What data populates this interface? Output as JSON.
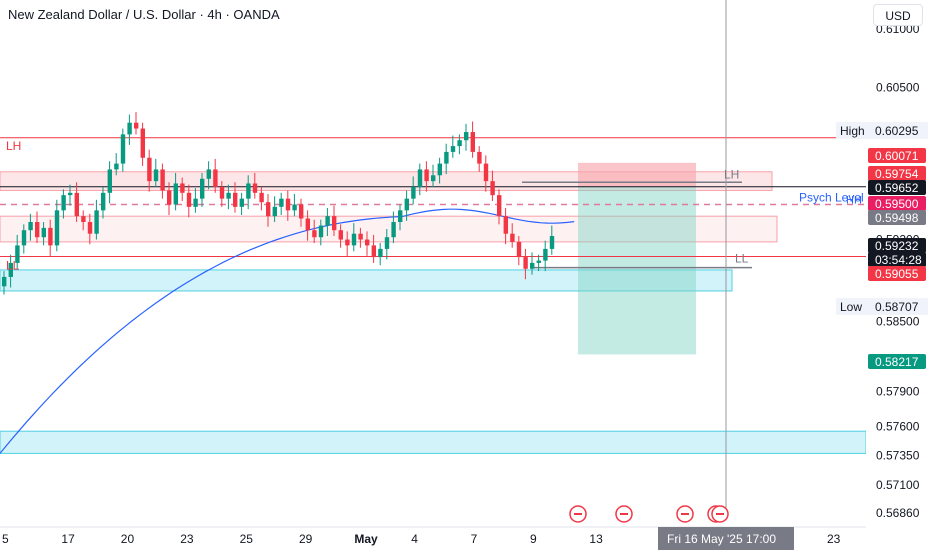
{
  "header": {
    "title": "New Zealand Dollar / U.S. Dollar · 4h · OANDA",
    "currency": "USD"
  },
  "colors": {
    "up": "#089981",
    "down": "#f23645",
    "ma": "#2962ff",
    "zone_blue": "#a5e8f3",
    "zone_red": "#fbd2d5"
  },
  "chart_data": {
    "type": "candlestick",
    "title": "New Zealand Dollar / U.S. Dollar · 4h · OANDA",
    "ylim": [
      0.568,
      0.6125
    ],
    "y_ticks": [
      "0.61000",
      "0.60500",
      "0.59200",
      "0.58900",
      "0.58500",
      "0.57900",
      "0.57600",
      "0.57350",
      "0.57100",
      "0.56860"
    ],
    "x_ticks": [
      {
        "label": "5",
        "pos": 0
      },
      {
        "label": "17",
        "pos": 9
      },
      {
        "label": "20",
        "pos": 18
      },
      {
        "label": "23",
        "pos": 27
      },
      {
        "label": "25",
        "pos": 36
      },
      {
        "label": "29",
        "pos": 45
      },
      {
        "label": "May",
        "pos": 54
      },
      {
        "label": "4",
        "pos": 62
      },
      {
        "label": "7",
        "pos": 71
      },
      {
        "label": "9",
        "pos": 80
      },
      {
        "label": "13",
        "pos": 89
      },
      {
        "label": "21",
        "pos": 116
      },
      {
        "label": "23",
        "pos": 125
      }
    ],
    "ohlc_close": [
      0.5888,
      0.59,
      0.5915,
      0.5928,
      0.5935,
      0.5922,
      0.593,
      0.5915,
      0.5945,
      0.5958,
      0.596,
      0.594,
      0.5935,
      0.5925,
      0.5945,
      0.596,
      0.598,
      0.5985,
      0.601,
      0.602,
      0.6015,
      0.599,
      0.597,
      0.598,
      0.5962,
      0.595,
      0.5968,
      0.596,
      0.5948,
      0.5955,
      0.5972,
      0.598,
      0.5965,
      0.5955,
      0.596,
      0.5948,
      0.5955,
      0.5968,
      0.596,
      0.5952,
      0.594,
      0.5948,
      0.5955,
      0.5945,
      0.595,
      0.5938,
      0.5928,
      0.5922,
      0.5932,
      0.594,
      0.5928,
      0.592,
      0.5915,
      0.5925,
      0.592,
      0.5915,
      0.5905,
      0.5912,
      0.5922,
      0.5935,
      0.5945,
      0.5955,
      0.5965,
      0.598,
      0.597,
      0.5975,
      0.5985,
      0.5995,
      0.6,
      0.6005,
      0.6012,
      0.5995,
      0.5985,
      0.597,
      0.5958,
      0.594,
      0.5925,
      0.5918,
      0.5905,
      0.5895,
      0.59,
      0.5902,
      0.5912,
      0.5923
    ],
    "moving_average_last": 0.59498,
    "price_labels": [
      {
        "text": "High",
        "value": "0.60295",
        "style": "plain"
      },
      {
        "text": "",
        "value": "0.60071",
        "style": "red"
      },
      {
        "text": "",
        "value": "0.59754",
        "style": "red"
      },
      {
        "text": "",
        "value": "0.59652",
        "style": "black"
      },
      {
        "text": "",
        "value": "0.59500",
        "style": "pink"
      },
      {
        "text": "",
        "value": "0.59498",
        "style": "grey"
      },
      {
        "text": "",
        "value": "0.59232",
        "style": "black"
      },
      {
        "text": "",
        "value": "03:54:28",
        "style": "black_sub"
      },
      {
        "text": "",
        "value": "0.59055",
        "style": "red"
      },
      {
        "text": "Low",
        "value": "0.58707",
        "style": "plain"
      },
      {
        "text": "",
        "value": "0.58217",
        "style": "teal"
      }
    ],
    "annotations": [
      {
        "text": "LH",
        "kind": "line_label"
      },
      {
        "text": "LL",
        "kind": "line_label"
      },
      {
        "text": "LH",
        "kind": "line_label"
      },
      {
        "text": "LL",
        "kind": "line_label"
      },
      {
        "text": "Psych Level",
        "kind": "line_label"
      },
      {
        "text": "HH",
        "kind": "line_label"
      }
    ],
    "levels": {
      "lh_line": 0.60071,
      "red_mid_line": 0.59055,
      "black_line": 0.59652,
      "psych": 0.595,
      "ll_short": 0.5896,
      "blue_zone": [
        0.5876,
        0.5894
      ],
      "blue_zone_low": [
        0.5737,
        0.5756
      ],
      "red_zone_top": [
        0.5962,
        0.5978
      ],
      "red_zone_mid": [
        0.5918,
        0.594
      ],
      "pos_stop": [
        0.59652,
        0.59754
      ],
      "pos_target": [
        0.58217,
        0.59652
      ]
    },
    "cursor_time": "Fri 16 May '25   17:00"
  }
}
